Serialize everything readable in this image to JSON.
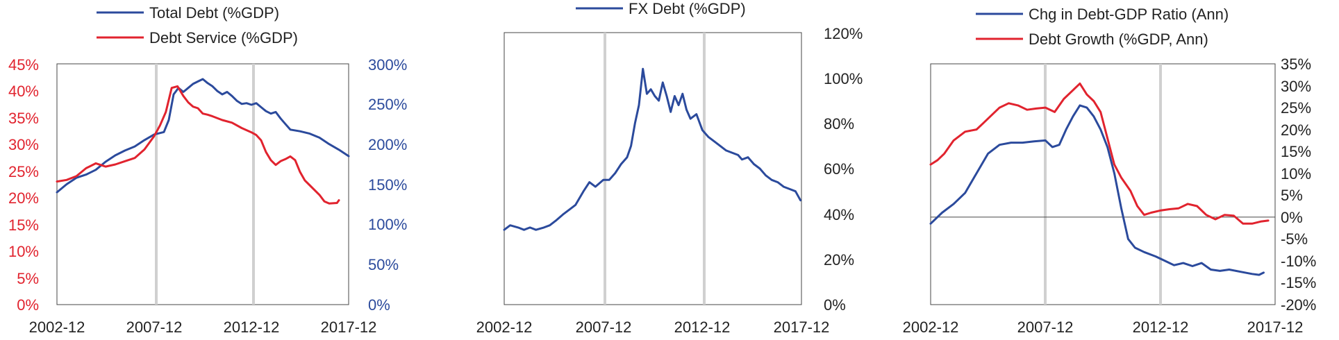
{
  "colors": {
    "blue": "#2b4a9c",
    "red": "#e1232e",
    "axis": "#444444",
    "shade": "#d0d0d0",
    "text": "#222222"
  },
  "chart_data": [
    {
      "type": "line",
      "legend": [
        "Total Debt (%GDP)",
        "Debt Service (%GDP)"
      ],
      "x_ticks": [
        "2002-12",
        "2007-12",
        "2012-12",
        "2017-12"
      ],
      "xlim": [
        2003.0,
        2018.0
      ],
      "vlines": [
        2008.0,
        2013.0
      ],
      "left_axis": {
        "ticks": [
          "0%",
          "5%",
          "10%",
          "15%",
          "20%",
          "25%",
          "30%",
          "35%",
          "40%",
          "45%"
        ],
        "ylim": [
          0,
          45
        ]
      },
      "right_axis": {
        "ticks": [
          "0%",
          "50%",
          "100%",
          "150%",
          "200%",
          "250%",
          "300%"
        ],
        "ylim": [
          0,
          300
        ]
      },
      "series": [
        {
          "name": "Total Debt (%GDP)",
          "axis": "right",
          "color": "blue",
          "points": [
            [
              2003.0,
              140
            ],
            [
              2003.5,
              150
            ],
            [
              2004.0,
              158
            ],
            [
              2004.5,
              162
            ],
            [
              2005.0,
              168
            ],
            [
              2005.5,
              178
            ],
            [
              2006.0,
              186
            ],
            [
              2006.5,
              192
            ],
            [
              2007.0,
              197
            ],
            [
              2007.5,
              205
            ],
            [
              2008.0,
              212
            ],
            [
              2008.5,
              215
            ],
            [
              2008.75,
              230
            ],
            [
              2009.0,
              262
            ],
            [
              2009.25,
              270
            ],
            [
              2009.5,
              265
            ],
            [
              2009.75,
              270
            ],
            [
              2010.0,
              275
            ],
            [
              2010.25,
              278
            ],
            [
              2010.5,
              281
            ],
            [
              2010.75,
              276
            ],
            [
              2011.0,
              272
            ],
            [
              2011.25,
              266
            ],
            [
              2011.5,
              262
            ],
            [
              2011.75,
              265
            ],
            [
              2012.0,
              260
            ],
            [
              2012.25,
              254
            ],
            [
              2012.5,
              250
            ],
            [
              2012.75,
              251
            ],
            [
              2013.0,
              249
            ],
            [
              2013.25,
              251
            ],
            [
              2013.5,
              246
            ],
            [
              2013.75,
              241
            ],
            [
              2014.0,
              238
            ],
            [
              2014.25,
              240
            ],
            [
              2014.5,
              232
            ],
            [
              2014.75,
              225
            ],
            [
              2015.0,
              218
            ],
            [
              2015.5,
              216
            ],
            [
              2016.0,
              213
            ],
            [
              2016.5,
              208
            ],
            [
              2017.0,
              200
            ],
            [
              2017.5,
              193
            ],
            [
              2018.0,
              185
            ]
          ]
        },
        {
          "name": "Debt Service (%GDP)",
          "axis": "left",
          "color": "red",
          "points": [
            [
              2003.0,
              23.0
            ],
            [
              2003.5,
              23.3
            ],
            [
              2004.0,
              24.0
            ],
            [
              2004.5,
              25.5
            ],
            [
              2005.0,
              26.4
            ],
            [
              2005.5,
              25.8
            ],
            [
              2006.0,
              26.2
            ],
            [
              2006.5,
              26.8
            ],
            [
              2007.0,
              27.4
            ],
            [
              2007.5,
              29.0
            ],
            [
              2008.0,
              31.5
            ],
            [
              2008.3,
              33.5
            ],
            [
              2008.6,
              36.0
            ],
            [
              2008.9,
              40.5
            ],
            [
              2009.2,
              40.8
            ],
            [
              2009.5,
              39.0
            ],
            [
              2009.75,
              37.8
            ],
            [
              2010.0,
              37.0
            ],
            [
              2010.25,
              36.7
            ],
            [
              2010.5,
              35.7
            ],
            [
              2010.75,
              35.5
            ],
            [
              2011.0,
              35.2
            ],
            [
              2011.5,
              34.5
            ],
            [
              2012.0,
              34.0
            ],
            [
              2012.5,
              33.0
            ],
            [
              2013.0,
              32.2
            ],
            [
              2013.25,
              31.7
            ],
            [
              2013.5,
              30.7
            ],
            [
              2013.75,
              28.5
            ],
            [
              2014.0,
              27.0
            ],
            [
              2014.25,
              26.1
            ],
            [
              2014.5,
              26.8
            ],
            [
              2014.75,
              27.2
            ],
            [
              2015.0,
              27.7
            ],
            [
              2015.25,
              27.0
            ],
            [
              2015.5,
              24.8
            ],
            [
              2015.75,
              23.2
            ],
            [
              2016.0,
              22.3
            ],
            [
              2016.5,
              20.5
            ],
            [
              2016.75,
              19.3
            ],
            [
              2017.0,
              18.9
            ],
            [
              2017.4,
              19.0
            ],
            [
              2017.5,
              19.5
            ]
          ]
        }
      ]
    },
    {
      "type": "line",
      "legend": [
        "FX Debt (%GDP)"
      ],
      "x_ticks": [
        "2002-12",
        "2007-12",
        "2012-12",
        "2017-12"
      ],
      "xlim": [
        2003.0,
        2018.0
      ],
      "vlines": [
        2008.0,
        2013.0
      ],
      "right_axis": {
        "ticks": [
          "0%",
          "20%",
          "40%",
          "60%",
          "80%",
          "100%",
          "120%"
        ],
        "ylim": [
          0,
          120
        ]
      },
      "series": [
        {
          "name": "FX Debt (%GDP)",
          "axis": "right",
          "color": "blue",
          "points": [
            [
              2003.0,
              33
            ],
            [
              2003.3,
              35
            ],
            [
              2003.7,
              34
            ],
            [
              2004.0,
              33
            ],
            [
              2004.3,
              34
            ],
            [
              2004.6,
              33
            ],
            [
              2005.0,
              34
            ],
            [
              2005.3,
              35
            ],
            [
              2005.6,
              37
            ],
            [
              2006.0,
              40
            ],
            [
              2006.3,
              42
            ],
            [
              2006.6,
              44
            ],
            [
              2007.0,
              50
            ],
            [
              2007.3,
              54
            ],
            [
              2007.6,
              52
            ],
            [
              2008.0,
              55
            ],
            [
              2008.3,
              55
            ],
            [
              2008.6,
              58
            ],
            [
              2008.9,
              62
            ],
            [
              2009.2,
              65
            ],
            [
              2009.4,
              70
            ],
            [
              2009.6,
              80
            ],
            [
              2009.8,
              88
            ],
            [
              2010.0,
              104
            ],
            [
              2010.2,
              93
            ],
            [
              2010.4,
              95
            ],
            [
              2010.6,
              92
            ],
            [
              2010.8,
              90
            ],
            [
              2011.0,
              98
            ],
            [
              2011.2,
              92
            ],
            [
              2011.4,
              85
            ],
            [
              2011.6,
              92
            ],
            [
              2011.8,
              88
            ],
            [
              2012.0,
              93
            ],
            [
              2012.2,
              86
            ],
            [
              2012.4,
              82
            ],
            [
              2012.7,
              84
            ],
            [
              2013.0,
              77
            ],
            [
              2013.3,
              74
            ],
            [
              2013.6,
              72
            ],
            [
              2013.9,
              70
            ],
            [
              2014.2,
              68
            ],
            [
              2014.5,
              67
            ],
            [
              2014.8,
              66
            ],
            [
              2015.0,
              64
            ],
            [
              2015.3,
              65
            ],
            [
              2015.6,
              62
            ],
            [
              2015.9,
              60
            ],
            [
              2016.2,
              57
            ],
            [
              2016.5,
              55
            ],
            [
              2016.8,
              54
            ],
            [
              2017.1,
              52
            ],
            [
              2017.4,
              51
            ],
            [
              2017.7,
              50
            ],
            [
              2017.95,
              46
            ]
          ]
        }
      ]
    },
    {
      "type": "line",
      "legend": [
        "Chg in Debt-GDP Ratio (Ann)",
        "Debt Growth (%GDP, Ann)"
      ],
      "x_ticks": [
        "2002-12",
        "2007-12",
        "2012-12",
        "2017-12"
      ],
      "xlim": [
        2003.0,
        2018.0
      ],
      "vlines": [
        2008.0,
        2013.0
      ],
      "right_axis": {
        "ticks": [
          "-20%",
          "-15%",
          "-10%",
          "-5%",
          "0%",
          "5%",
          "10%",
          "15%",
          "20%",
          "25%",
          "30%",
          "35%"
        ],
        "ylim": [
          -20,
          35
        ]
      },
      "series": [
        {
          "name": "Chg in Debt-GDP Ratio (Ann)",
          "axis": "right",
          "color": "blue",
          "points": [
            [
              2003.0,
              -1.5
            ],
            [
              2003.5,
              1.0
            ],
            [
              2004.0,
              3.0
            ],
            [
              2004.5,
              5.5
            ],
            [
              2005.0,
              10.0
            ],
            [
              2005.5,
              14.5
            ],
            [
              2006.0,
              16.5
            ],
            [
              2006.5,
              17.0
            ],
            [
              2007.0,
              17.0
            ],
            [
              2007.5,
              17.3
            ],
            [
              2008.0,
              17.5
            ],
            [
              2008.3,
              16.0
            ],
            [
              2008.6,
              16.5
            ],
            [
              2008.9,
              20.0
            ],
            [
              2009.2,
              23.0
            ],
            [
              2009.5,
              25.5
            ],
            [
              2009.8,
              25.0
            ],
            [
              2010.1,
              23.0
            ],
            [
              2010.4,
              20.0
            ],
            [
              2010.7,
              16.0
            ],
            [
              2011.0,
              10.0
            ],
            [
              2011.3,
              2.0
            ],
            [
              2011.6,
              -5.0
            ],
            [
              2011.9,
              -7.0
            ],
            [
              2012.3,
              -8.0
            ],
            [
              2012.8,
              -9.0
            ],
            [
              2013.2,
              -10.0
            ],
            [
              2013.6,
              -11.0
            ],
            [
              2014.0,
              -10.5
            ],
            [
              2014.4,
              -11.2
            ],
            [
              2014.8,
              -10.5
            ],
            [
              2015.2,
              -12.0
            ],
            [
              2015.6,
              -12.3
            ],
            [
              2016.0,
              -12.0
            ],
            [
              2016.5,
              -12.5
            ],
            [
              2017.0,
              -13.0
            ],
            [
              2017.3,
              -13.2
            ],
            [
              2017.5,
              -12.7
            ]
          ]
        },
        {
          "name": "Debt Growth (%GDP, Ann)",
          "axis": "right",
          "color": "red",
          "points": [
            [
              2003.0,
              12.0
            ],
            [
              2003.3,
              13.0
            ],
            [
              2003.6,
              14.5
            ],
            [
              2004.0,
              17.5
            ],
            [
              2004.5,
              19.5
            ],
            [
              2005.0,
              20.0
            ],
            [
              2005.3,
              21.5
            ],
            [
              2005.6,
              23.0
            ],
            [
              2006.0,
              25.0
            ],
            [
              2006.4,
              26.0
            ],
            [
              2006.8,
              25.5
            ],
            [
              2007.2,
              24.5
            ],
            [
              2007.6,
              24.8
            ],
            [
              2008.0,
              25.0
            ],
            [
              2008.4,
              24.0
            ],
            [
              2008.8,
              27.0
            ],
            [
              2009.2,
              29.0
            ],
            [
              2009.5,
              30.5
            ],
            [
              2009.8,
              28.0
            ],
            [
              2010.1,
              26.5
            ],
            [
              2010.4,
              24.0
            ],
            [
              2010.7,
              18.0
            ],
            [
              2011.0,
              12.0
            ],
            [
              2011.3,
              9.0
            ],
            [
              2011.7,
              6.0
            ],
            [
              2012.0,
              2.5
            ],
            [
              2012.3,
              0.5
            ],
            [
              2012.6,
              1.0
            ],
            [
              2013.0,
              1.5
            ],
            [
              2013.4,
              1.8
            ],
            [
              2013.8,
              2.0
            ],
            [
              2014.2,
              3.0
            ],
            [
              2014.6,
              2.5
            ],
            [
              2015.0,
              0.5
            ],
            [
              2015.4,
              -0.5
            ],
            [
              2015.8,
              0.5
            ],
            [
              2016.2,
              0.3
            ],
            [
              2016.6,
              -1.5
            ],
            [
              2017.0,
              -1.5
            ],
            [
              2017.4,
              -1.0
            ],
            [
              2017.7,
              -0.8
            ]
          ]
        }
      ]
    }
  ]
}
